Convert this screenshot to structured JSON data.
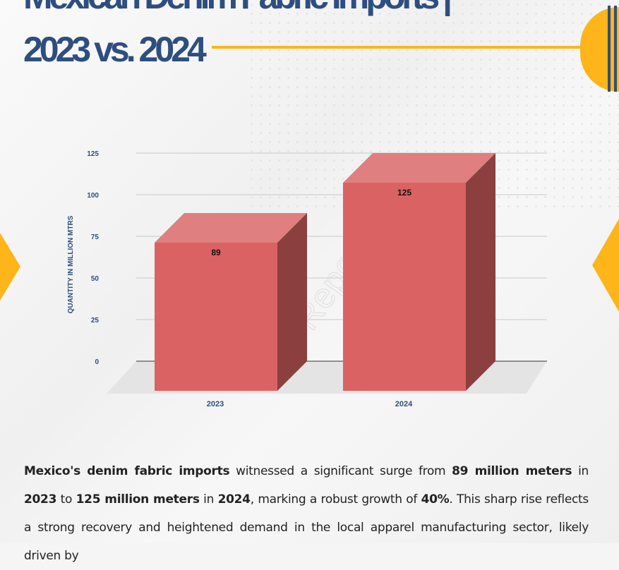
{
  "header": {
    "title_line1": "Mexican Denim Fabric Imports |",
    "title_line2": "2023 vs. 2024"
  },
  "colors": {
    "accent": "#fdb51a",
    "navy": "#2e4e7e",
    "bar_front": "#db6262",
    "bar_top": "#e07f7f",
    "bar_side": "#8b3f3f"
  },
  "watermark": "D&J Reports",
  "chart_data": {
    "type": "bar",
    "categories": [
      "2023",
      "2024"
    ],
    "values": [
      89,
      125
    ],
    "data_labels": [
      "89",
      "125"
    ],
    "ylabel": "QUANTITY IN MILLION MTRS",
    "xlabel": "",
    "ylim": [
      0,
      125
    ],
    "yticks": [
      "0",
      "25",
      "50",
      "75",
      "100",
      "125"
    ],
    "grid": true,
    "style": "3d"
  },
  "paragraph": {
    "p1b": "Mexico's denim fabric imports",
    "p2": " witnessed a significant surge from ",
    "p3b": "89 million meters",
    "p4": " in ",
    "p5b": "2023",
    "p6": " to ",
    "p7b": "125 million meters",
    "p8": " in ",
    "p9b": "2024",
    "p10": ", marking a robust growth of ",
    "p11b": "40%",
    "p12": ". This sharp rise reflects a strong recovery and heightened demand in the local apparel manufacturing sector, likely driven by"
  }
}
